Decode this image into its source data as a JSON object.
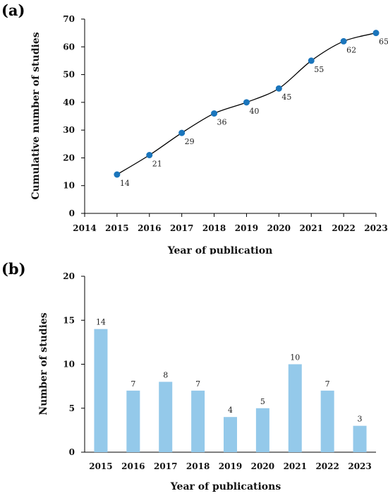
{
  "chart_data": [
    {
      "panel_label": "(a)",
      "type": "line",
      "xlabel": "Year of publication",
      "ylabel": "Cumulative number of studies",
      "xlim": [
        2014,
        2023
      ],
      "x_ticks": [
        "2014",
        "2015",
        "2016",
        "2017",
        "2018",
        "2019",
        "2020",
        "2021",
        "2022",
        "2023"
      ],
      "ylim": [
        0,
        70
      ],
      "y_ticks": [
        "0",
        "10",
        "20",
        "30",
        "40",
        "50",
        "60",
        "70"
      ],
      "x": [
        2015,
        2016,
        2017,
        2018,
        2019,
        2020,
        2021,
        2022,
        2023
      ],
      "values": [
        14,
        21,
        29,
        36,
        40,
        45,
        55,
        62,
        65
      ],
      "point_labels": [
        "14",
        "21",
        "29",
        "36",
        "40",
        "45",
        "55",
        "62",
        "65"
      ],
      "marker_color": "#1a75bc",
      "line_color": "#000000",
      "grid": false
    },
    {
      "panel_label": "(b)",
      "type": "bar",
      "xlabel": "Year of publications",
      "ylabel": "Number of studies",
      "categories": [
        "2015",
        "2016",
        "2017",
        "2018",
        "2019",
        "2020",
        "2021",
        "2022",
        "2023"
      ],
      "values": [
        14,
        7,
        8,
        7,
        4,
        5,
        10,
        7,
        3
      ],
      "value_labels": [
        "14",
        "7",
        "8",
        "7",
        "4",
        "5",
        "10",
        "7",
        "3"
      ],
      "ylim": [
        0,
        20
      ],
      "y_ticks": [
        "0",
        "5",
        "10",
        "15",
        "20"
      ],
      "bar_color": "#94c9ea",
      "grid": false
    }
  ]
}
